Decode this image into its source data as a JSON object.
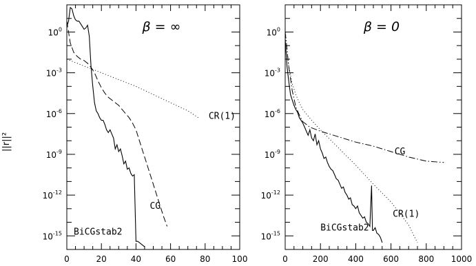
{
  "figure": {
    "ylabel": "||r||²"
  },
  "chart_data": [
    {
      "type": "line",
      "title": "β  =  ∞",
      "xlabel": "",
      "ylabel": "||r||²",
      "xlim": [
        0,
        100
      ],
      "ylim_log10": [
        -16,
        2
      ],
      "yscale": "log",
      "x_ticks": [
        "0",
        "20",
        "40",
        "60",
        "80",
        "100"
      ],
      "y_ticks": [
        {
          "base": "10",
          "exp": "0",
          "log10": 0
        },
        {
          "base": "10",
          "exp": "-3",
          "log10": -3
        },
        {
          "base": "10",
          "exp": "-6",
          "log10": -6
        },
        {
          "base": "10",
          "exp": "-9",
          "log10": -9
        },
        {
          "base": "10",
          "exp": "-12",
          "log10": -12
        },
        {
          "base": "10",
          "exp": "-15",
          "log10": -15
        }
      ],
      "series": [
        {
          "name": "BiCGstab2",
          "style": "solid",
          "label_at": [
            4,
            -14.9
          ],
          "points": [
            [
              0,
              0.4
            ],
            [
              1,
              0.8
            ],
            [
              2,
              1.8
            ],
            [
              3,
              1.7
            ],
            [
              4,
              1.2
            ],
            [
              5,
              0.9
            ],
            [
              6,
              0.8
            ],
            [
              7,
              0.8
            ],
            [
              8,
              0.6
            ],
            [
              9,
              0.4
            ],
            [
              10,
              0.2
            ],
            [
              11,
              0.3
            ],
            [
              12,
              0.5
            ],
            [
              13,
              -0.3
            ],
            [
              14,
              -2.5
            ],
            [
              15,
              -4.0
            ],
            [
              16,
              -5.2
            ],
            [
              17,
              -5.8
            ],
            [
              18,
              -6.0
            ],
            [
              19,
              -6.3
            ],
            [
              20,
              -6.5
            ],
            [
              21,
              -6.5
            ],
            [
              22,
              -6.8
            ],
            [
              23,
              -7.2
            ],
            [
              24,
              -7.4
            ],
            [
              25,
              -7.2
            ],
            [
              26,
              -7.5
            ],
            [
              27,
              -7.8
            ],
            [
              28,
              -8.6
            ],
            [
              29,
              -8.3
            ],
            [
              30,
              -8.8
            ],
            [
              31,
              -8.6
            ],
            [
              32,
              -9.1
            ],
            [
              33,
              -9.7
            ],
            [
              34,
              -9.5
            ],
            [
              35,
              -10.1
            ],
            [
              36,
              -10.0
            ],
            [
              37,
              -10.4
            ],
            [
              38,
              -10.6
            ],
            [
              39,
              -10.5
            ],
            [
              40,
              -15.4
            ],
            [
              41,
              -15.4
            ],
            [
              42,
              -15.5
            ],
            [
              43,
              -15.6
            ],
            [
              44,
              -15.7
            ],
            [
              45,
              -15.8
            ]
          ]
        },
        {
          "name": "CG",
          "style": "dashed",
          "label_at": [
            48,
            -13.0
          ],
          "points": [
            [
              0,
              0.8
            ],
            [
              1,
              0
            ],
            [
              2,
              -0.8
            ],
            [
              4,
              -1.5
            ],
            [
              6,
              -1.8
            ],
            [
              8,
              -2.0
            ],
            [
              10,
              -2.1
            ],
            [
              12,
              -2.3
            ],
            [
              14,
              -2.6
            ],
            [
              16,
              -3.0
            ],
            [
              18,
              -3.6
            ],
            [
              20,
              -4.1
            ],
            [
              22,
              -4.5
            ],
            [
              24,
              -4.8
            ],
            [
              26,
              -5.0
            ],
            [
              28,
              -5.2
            ],
            [
              30,
              -5.4
            ],
            [
              32,
              -5.7
            ],
            [
              34,
              -6.0
            ],
            [
              36,
              -6.3
            ],
            [
              38,
              -6.7
            ],
            [
              40,
              -7.2
            ],
            [
              42,
              -8.0
            ],
            [
              44,
              -8.8
            ],
            [
              46,
              -9.6
            ],
            [
              48,
              -10.4
            ],
            [
              50,
              -11.2
            ],
            [
              52,
              -12.0
            ],
            [
              54,
              -12.8
            ],
            [
              56,
              -13.6
            ],
            [
              58,
              -14.3
            ]
          ]
        },
        {
          "name": "CR(1)",
          "style": "dotted",
          "label_at": [
            82,
            -6.4
          ],
          "points": [
            [
              0,
              -2.0
            ],
            [
              10,
              -2.5
            ],
            [
              20,
              -3.0
            ],
            [
              30,
              -3.5
            ],
            [
              40,
              -4.0
            ],
            [
              50,
              -4.6
            ],
            [
              60,
              -5.2
            ],
            [
              70,
              -5.8
            ],
            [
              76,
              -6.3
            ]
          ]
        }
      ]
    },
    {
      "type": "line",
      "title": "β  =  0",
      "xlabel": "",
      "ylabel": "",
      "xlim": [
        0,
        1000
      ],
      "ylim_log10": [
        -16,
        2
      ],
      "yscale": "log",
      "x_ticks": [
        "0",
        "200",
        "400",
        "600",
        "800",
        "1000"
      ],
      "y_ticks": [
        {
          "base": "10",
          "exp": "0",
          "log10": 0
        },
        {
          "base": "10",
          "exp": "-3",
          "log10": -3
        },
        {
          "base": "10",
          "exp": "-6",
          "log10": -6
        },
        {
          "base": "10",
          "exp": "-9",
          "log10": -9
        },
        {
          "base": "10",
          "exp": "-12",
          "log10": -12
        },
        {
          "base": "10",
          "exp": "-15",
          "log10": -15
        }
      ],
      "series": [
        {
          "name": "BiCGstab2",
          "style": "solid",
          "label_at": [
            200,
            -14.6
          ],
          "points": [
            [
              0,
              -0.5
            ],
            [
              10,
              -2.5
            ],
            [
              20,
              -3.6
            ],
            [
              30,
              -4.6
            ],
            [
              40,
              -5.0
            ],
            [
              50,
              -5.4
            ],
            [
              60,
              -5.7
            ],
            [
              70,
              -5.9
            ],
            [
              80,
              -6.3
            ],
            [
              90,
              -6.5
            ],
            [
              100,
              -6.7
            ],
            [
              110,
              -7.0
            ],
            [
              120,
              -7.3
            ],
            [
              130,
              -7.6
            ],
            [
              140,
              -7.2
            ],
            [
              150,
              -7.8
            ],
            [
              160,
              -8.0
            ],
            [
              170,
              -7.5
            ],
            [
              180,
              -8.3
            ],
            [
              190,
              -8.0
            ],
            [
              200,
              -8.6
            ],
            [
              210,
              -8.9
            ],
            [
              220,
              -9.3
            ],
            [
              230,
              -9.2
            ],
            [
              240,
              -9.6
            ],
            [
              250,
              -9.9
            ],
            [
              260,
              -10.1
            ],
            [
              270,
              -10.2
            ],
            [
              280,
              -10.5
            ],
            [
              290,
              -10.8
            ],
            [
              300,
              -10.9
            ],
            [
              310,
              -11.2
            ],
            [
              320,
              -11.5
            ],
            [
              330,
              -11.4
            ],
            [
              340,
              -11.8
            ],
            [
              350,
              -12.0
            ],
            [
              360,
              -12.3
            ],
            [
              370,
              -12.2
            ],
            [
              380,
              -12.7
            ],
            [
              390,
              -12.8
            ],
            [
              400,
              -13.0
            ],
            [
              410,
              -12.8
            ],
            [
              420,
              -13.3
            ],
            [
              430,
              -13.5
            ],
            [
              440,
              -13.7
            ],
            [
              450,
              -13.6
            ],
            [
              460,
              -14.0
            ],
            [
              470,
              -14.1
            ],
            [
              480,
              -14.3
            ],
            [
              490,
              -11.3
            ],
            [
              495,
              -14.6
            ],
            [
              500,
              -14.6
            ],
            [
              510,
              -14.4
            ],
            [
              520,
              -14.8
            ],
            [
              530,
              -14.9
            ],
            [
              540,
              -15.1
            ],
            [
              550,
              -15.5
            ]
          ]
        },
        {
          "name": "CG",
          "style": "dashdot",
          "label_at": [
            620,
            -9.0
          ],
          "points": [
            [
              0,
              0
            ],
            [
              20,
              -2.5
            ],
            [
              40,
              -4.3
            ],
            [
              60,
              -5.5
            ],
            [
              80,
              -6.1
            ],
            [
              100,
              -6.6
            ],
            [
              140,
              -7.0
            ],
            [
              200,
              -7.3
            ],
            [
              300,
              -7.7
            ],
            [
              400,
              -8.1
            ],
            [
              500,
              -8.4
            ],
            [
              600,
              -8.8
            ],
            [
              700,
              -9.2
            ],
            [
              800,
              -9.5
            ],
            [
              900,
              -9.6
            ]
          ]
        },
        {
          "name": "CR(1)",
          "style": "dotted",
          "label_at": [
            610,
            -13.6
          ],
          "points": [
            [
              0,
              0.2
            ],
            [
              20,
              -2.5
            ],
            [
              40,
              -3.8
            ],
            [
              60,
              -4.6
            ],
            [
              80,
              -5.2
            ],
            [
              100,
              -5.7
            ],
            [
              150,
              -6.5
            ],
            [
              200,
              -7.2
            ],
            [
              300,
              -8.5
            ],
            [
              400,
              -9.8
            ],
            [
              500,
              -11.2
            ],
            [
              600,
              -12.5
            ],
            [
              700,
              -14.2
            ],
            [
              750,
              -15.5
            ]
          ]
        }
      ]
    }
  ]
}
